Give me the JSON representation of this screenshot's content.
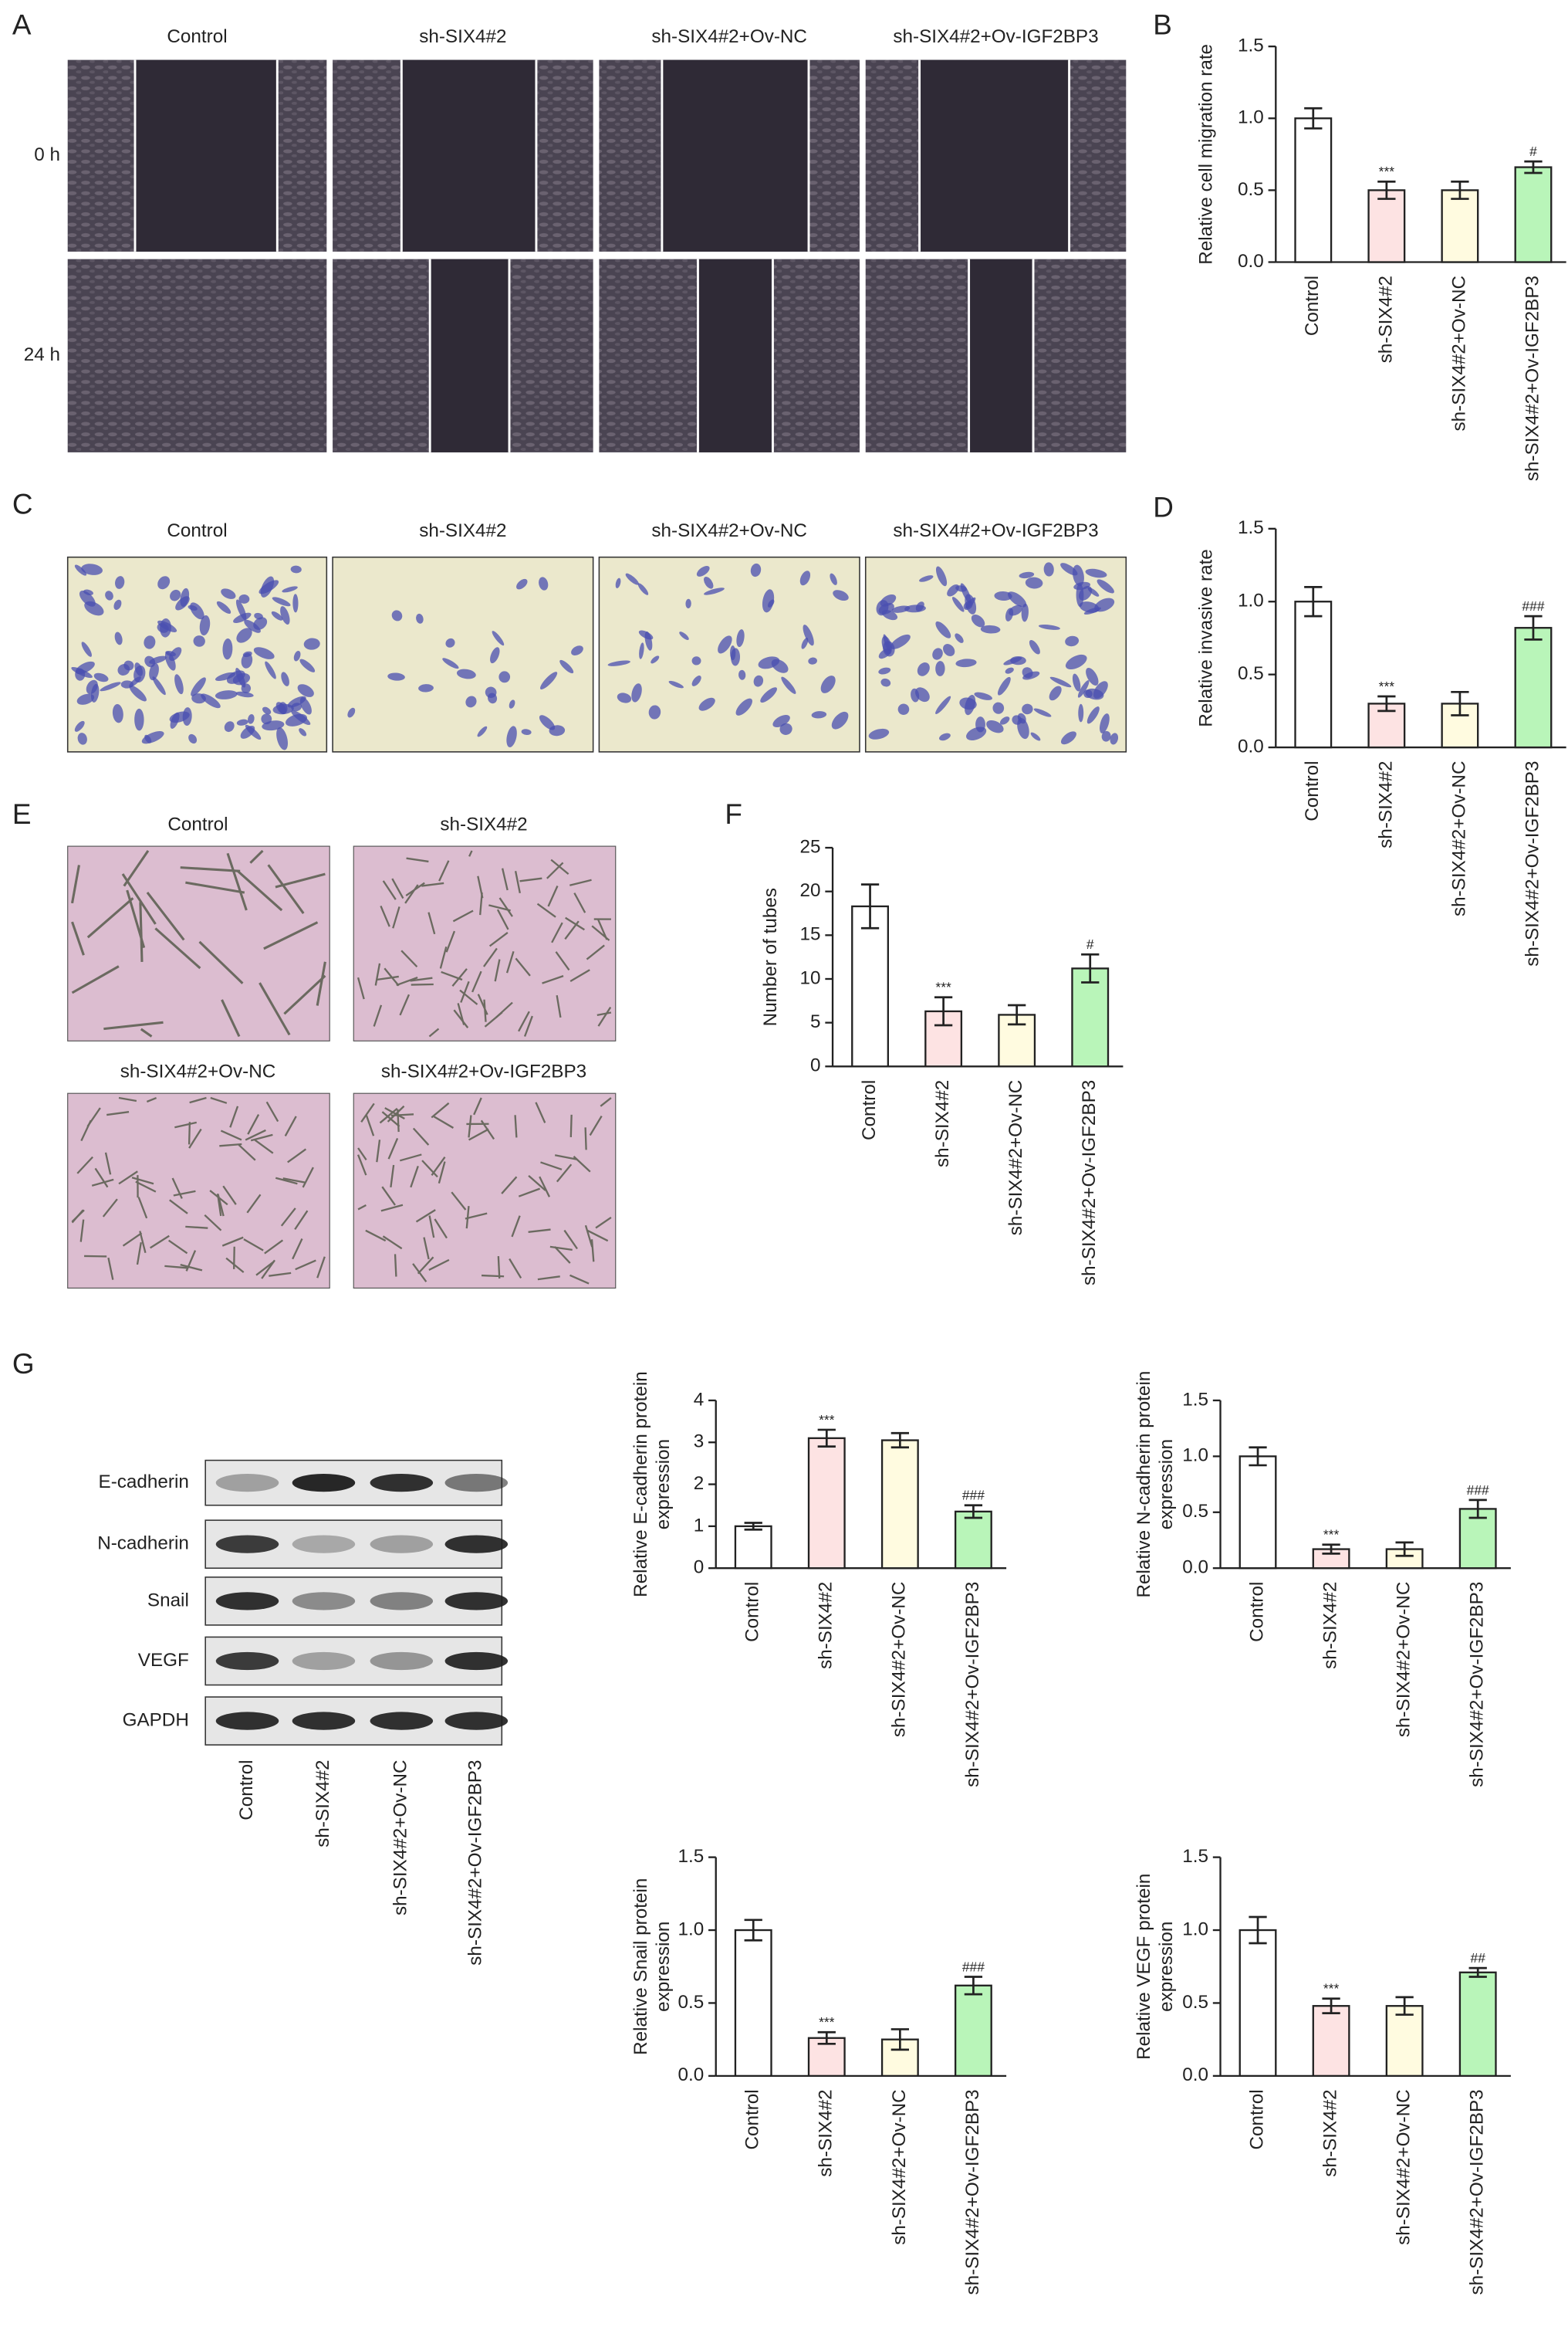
{
  "panel_a": {
    "label": "A",
    "columns": [
      "Control",
      "sh-SIX4#2",
      "sh-SIX4#2+Ov-NC",
      "sh-SIX4#2+Ov-IGF2BP3"
    ],
    "rows": [
      "0 h",
      "24 h"
    ]
  },
  "panel_c": {
    "label": "C",
    "columns": [
      "Control",
      "sh-SIX4#2",
      "sh-SIX4#2+Ov-NC",
      "sh-SIX4#2+Ov-IGF2BP3"
    ]
  },
  "panel_e": {
    "label": "E",
    "images": [
      "Control",
      "sh-SIX4#2",
      "sh-SIX4#2+Ov-NC",
      "sh-SIX4#2+Ov-IGF2BP3"
    ]
  },
  "panel_g": {
    "label": "G",
    "proteins": [
      "E-cadherin",
      "N-cadherin",
      "Snail",
      "VEGF",
      "GAPDH"
    ],
    "lanes": [
      "Control",
      "sh-SIX4#2",
      "sh-SIX4#2+Ov-NC",
      "sh-SIX4#2+Ov-IGF2BP3"
    ]
  },
  "chart_data": [
    {
      "type": "bar",
      "panel": "B",
      "ylabel": [
        "Relative cell migration rate"
      ],
      "categories": [
        "Control",
        "sh-SIX4#2",
        "sh-SIX4#2+Ov-NC",
        "sh-SIX4#2+Ov-IGF2BP3"
      ],
      "values": [
        1.0,
        0.5,
        0.5,
        0.66
      ],
      "errors": [
        0.07,
        0.06,
        0.06,
        0.04
      ],
      "annotations": [
        null,
        "***",
        null,
        "#"
      ],
      "colors": [
        "#ffffff",
        "#fde3e3",
        "#fffbe0",
        "#b9f5b9"
      ],
      "ylim": [
        0,
        1.5
      ],
      "yticks": [
        {
          "value": 0,
          "label": "0.0"
        },
        {
          "value": 0.5,
          "label": "0.5"
        },
        {
          "value": 1,
          "label": "1.0"
        },
        {
          "value": 1.5,
          "label": "1.5"
        }
      ]
    },
    {
      "type": "bar",
      "panel": "D",
      "ylabel": [
        "Relative invasive rate"
      ],
      "categories": [
        "Control",
        "sh-SIX4#2",
        "sh-SIX4#2+Ov-NC",
        "sh-SIX4#2+Ov-IGF2BP3"
      ],
      "values": [
        1.0,
        0.3,
        0.3,
        0.82
      ],
      "errors": [
        0.1,
        0.05,
        0.08,
        0.08
      ],
      "annotations": [
        null,
        "***",
        null,
        "###"
      ],
      "colors": [
        "#ffffff",
        "#fde3e3",
        "#fffbe0",
        "#b9f5b9"
      ],
      "ylim": [
        0,
        1.5
      ],
      "yticks": [
        {
          "value": 0,
          "label": "0.0"
        },
        {
          "value": 0.5,
          "label": "0.5"
        },
        {
          "value": 1,
          "label": "1.0"
        },
        {
          "value": 1.5,
          "label": "1.5"
        }
      ]
    },
    {
      "type": "bar",
      "panel": "F",
      "ylabel": [
        "Number of tubes"
      ],
      "categories": [
        "Control",
        "sh-SIX4#2",
        "sh-SIX4#2+Ov-NC",
        "sh-SIX4#2+Ov-IGF2BP3"
      ],
      "values": [
        18.3,
        6.3,
        5.9,
        11.2
      ],
      "errors": [
        2.5,
        1.6,
        1.1,
        1.6
      ],
      "annotations": [
        null,
        "***",
        null,
        "#"
      ],
      "colors": [
        "#ffffff",
        "#fde3e3",
        "#fffbe0",
        "#b9f5b9"
      ],
      "ylim": [
        0,
        25
      ],
      "yticks": [
        0,
        5,
        10,
        15,
        20,
        25
      ]
    },
    {
      "type": "bar",
      "ylabel": [
        "Relative E-cadherin protein",
        "expression"
      ],
      "categories": [
        "Control",
        "sh-SIX4#2",
        "sh-SIX4#2+Ov-NC",
        "sh-SIX4#2+Ov-IGF2BP3"
      ],
      "values": [
        1.0,
        3.1,
        3.05,
        1.35
      ],
      "errors": [
        0.08,
        0.2,
        0.17,
        0.15
      ],
      "annotations": [
        null,
        "***",
        null,
        "###"
      ],
      "colors": [
        "#ffffff",
        "#fde3e3",
        "#fffbe0",
        "#b9f5b9"
      ],
      "ylim": [
        0,
        4
      ],
      "yticks": [
        0,
        1,
        2,
        3,
        4
      ]
    },
    {
      "type": "bar",
      "ylabel": [
        "Relative N-cadherin protein",
        "expression"
      ],
      "categories": [
        "Control",
        "sh-SIX4#2",
        "sh-SIX4#2+Ov-NC",
        "sh-SIX4#2+Ov-IGF2BP3"
      ],
      "values": [
        1.0,
        0.17,
        0.17,
        0.53
      ],
      "errors": [
        0.08,
        0.04,
        0.06,
        0.08
      ],
      "annotations": [
        null,
        "***",
        null,
        "###"
      ],
      "colors": [
        "#ffffff",
        "#fde3e3",
        "#fffbe0",
        "#b9f5b9"
      ],
      "ylim": [
        0,
        1.5
      ],
      "yticks": [
        {
          "value": 0,
          "label": "0.0"
        },
        {
          "value": 0.5,
          "label": "0.5"
        },
        {
          "value": 1,
          "label": "1.0"
        },
        {
          "value": 1.5,
          "label": "1.5"
        }
      ]
    },
    {
      "type": "bar",
      "ylabel": [
        "Relative Snail protein",
        "expression"
      ],
      "categories": [
        "Control",
        "sh-SIX4#2",
        "sh-SIX4#2+Ov-NC",
        "sh-SIX4#2+Ov-IGF2BP3"
      ],
      "values": [
        1.0,
        0.26,
        0.25,
        0.62
      ],
      "errors": [
        0.07,
        0.04,
        0.07,
        0.06
      ],
      "annotations": [
        null,
        "***",
        null,
        "###"
      ],
      "colors": [
        "#ffffff",
        "#fde3e3",
        "#fffbe0",
        "#b9f5b9"
      ],
      "ylim": [
        0,
        1.5
      ],
      "yticks": [
        {
          "value": 0,
          "label": "0.0"
        },
        {
          "value": 0.5,
          "label": "0.5"
        },
        {
          "value": 1,
          "label": "1.0"
        },
        {
          "value": 1.5,
          "label": "1.5"
        }
      ]
    },
    {
      "type": "bar",
      "ylabel": [
        "Relative VEGF protein",
        "expression"
      ],
      "categories": [
        "Control",
        "sh-SIX4#2",
        "sh-SIX4#2+Ov-NC",
        "sh-SIX4#2+Ov-IGF2BP3"
      ],
      "values": [
        1.0,
        0.48,
        0.48,
        0.71
      ],
      "errors": [
        0.09,
        0.05,
        0.06,
        0.03
      ],
      "annotations": [
        null,
        "***",
        null,
        "##"
      ],
      "colors": [
        "#ffffff",
        "#fde3e3",
        "#fffbe0",
        "#b9f5b9"
      ],
      "ylim": [
        0,
        1.5
      ],
      "yticks": [
        {
          "value": 0,
          "label": "0.0"
        },
        {
          "value": 0.5,
          "label": "0.5"
        },
        {
          "value": 1,
          "label": "1.0"
        },
        {
          "value": 1.5,
          "label": "1.5"
        }
      ]
    }
  ]
}
